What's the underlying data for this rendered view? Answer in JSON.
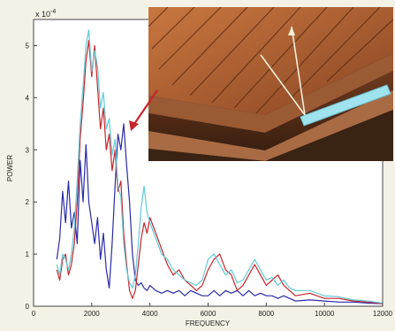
{
  "chart_data": {
    "type": "line",
    "title": "",
    "xlabel": "FREQUENCY",
    "ylabel": "POWER",
    "y_multiplier_label": "x 10",
    "y_multiplier_exponent": "-4",
    "xlim": [
      0,
      12000
    ],
    "ylim": [
      0,
      5.5
    ],
    "x_ticks": [
      0,
      2000,
      4000,
      6000,
      8000,
      10000,
      12000
    ],
    "y_ticks": [
      0,
      1,
      2,
      3,
      4,
      5
    ],
    "grid": false,
    "series": [
      {
        "color": "#2a2aa8",
        "x": [
          800,
          900,
          1000,
          1100,
          1200,
          1300,
          1400,
          1500,
          1600,
          1700,
          1800,
          1900,
          2000,
          2100,
          2200,
          2300,
          2400,
          2500,
          2600,
          2700,
          2800,
          2900,
          3000,
          3100,
          3200,
          3300,
          3400,
          3500,
          3600,
          3700,
          3800,
          3900,
          4000,
          4200,
          4400,
          4600,
          4800,
          5000,
          5200,
          5400,
          5600,
          5800,
          6000,
          6200,
          6400,
          6600,
          6800,
          7000,
          7200,
          7400,
          7600,
          7800,
          8000,
          8200,
          8400,
          8600,
          8800,
          9000,
          9500,
          10000,
          10500,
          11000,
          11500,
          12000
        ],
        "y": [
          0.9,
          1.3,
          2.2,
          1.6,
          2.4,
          1.5,
          1.8,
          1.2,
          2.8,
          2.0,
          3.1,
          2.0,
          1.6,
          1.2,
          1.7,
          0.9,
          1.4,
          0.7,
          0.35,
          1.2,
          2.3,
          3.3,
          3.0,
          3.5,
          2.7,
          2.0,
          1.0,
          0.5,
          0.4,
          0.45,
          0.35,
          0.3,
          0.4,
          0.3,
          0.25,
          0.3,
          0.25,
          0.3,
          0.2,
          0.3,
          0.25,
          0.2,
          0.2,
          0.3,
          0.2,
          0.3,
          0.25,
          0.3,
          0.2,
          0.3,
          0.2,
          0.25,
          0.2,
          0.2,
          0.15,
          0.2,
          0.15,
          0.1,
          0.12,
          0.1,
          0.08,
          0.08,
          0.06,
          0.05
        ]
      },
      {
        "color": "#c8242a",
        "x": [
          800,
          900,
          1000,
          1100,
          1200,
          1300,
          1400,
          1500,
          1600,
          1700,
          1800,
          1900,
          2000,
          2100,
          2200,
          2300,
          2400,
          2500,
          2600,
          2700,
          2800,
          2900,
          3000,
          3100,
          3200,
          3300,
          3400,
          3500,
          3600,
          3700,
          3800,
          3900,
          4000,
          4200,
          4400,
          4600,
          4800,
          5000,
          5200,
          5400,
          5600,
          5800,
          6000,
          6200,
          6400,
          6600,
          6800,
          7000,
          7200,
          7400,
          7600,
          7800,
          8000,
          8200,
          8400,
          8600,
          8800,
          9000,
          9500,
          10000,
          10500,
          11000,
          11500,
          12000
        ],
        "y": [
          0.7,
          0.5,
          0.9,
          1.0,
          0.6,
          0.8,
          1.2,
          2.0,
          3.2,
          3.9,
          4.7,
          5.1,
          4.4,
          5.0,
          4.2,
          3.4,
          3.8,
          3.0,
          3.3,
          2.6,
          3.0,
          2.2,
          2.4,
          1.4,
          0.8,
          0.3,
          0.15,
          0.3,
          0.8,
          1.3,
          1.6,
          1.4,
          1.7,
          1.4,
          1.1,
          0.8,
          0.6,
          0.7,
          0.5,
          0.4,
          0.3,
          0.4,
          0.7,
          0.9,
          1.0,
          0.7,
          0.6,
          0.3,
          0.4,
          0.6,
          0.8,
          0.6,
          0.4,
          0.5,
          0.6,
          0.4,
          0.3,
          0.2,
          0.25,
          0.15,
          0.15,
          0.1,
          0.08,
          0.05
        ]
      },
      {
        "color": "#62c9d6",
        "x": [
          800,
          900,
          1000,
          1100,
          1200,
          1300,
          1400,
          1500,
          1600,
          1700,
          1800,
          1900,
          2000,
          2100,
          2200,
          2300,
          2400,
          2500,
          2600,
          2700,
          2800,
          2900,
          3000,
          3100,
          3200,
          3300,
          3400,
          3500,
          3600,
          3700,
          3800,
          3900,
          4000,
          4200,
          4400,
          4600,
          4800,
          5000,
          5200,
          5400,
          5600,
          5800,
          6000,
          6200,
          6400,
          6600,
          6800,
          7000,
          7200,
          7400,
          7600,
          7800,
          8000,
          8200,
          8400,
          8600,
          8800,
          9000,
          9500,
          10000,
          10500,
          11000,
          11500,
          12000
        ],
        "y": [
          0.8,
          0.6,
          1.0,
          0.9,
          0.7,
          1.0,
          1.5,
          2.4,
          3.5,
          4.2,
          5.0,
          5.3,
          4.5,
          4.9,
          4.6,
          3.8,
          4.1,
          3.4,
          3.6,
          2.9,
          3.2,
          2.3,
          2.1,
          1.2,
          0.7,
          0.45,
          0.35,
          0.6,
          1.2,
          1.9,
          2.3,
          1.8,
          1.6,
          1.3,
          1.0,
          0.9,
          0.7,
          0.6,
          0.5,
          0.45,
          0.4,
          0.5,
          0.9,
          1.0,
          0.8,
          0.6,
          0.7,
          0.45,
          0.5,
          0.7,
          0.9,
          0.7,
          0.5,
          0.55,
          0.4,
          0.5,
          0.35,
          0.3,
          0.3,
          0.2,
          0.18,
          0.12,
          0.1,
          0.06
        ]
      }
    ]
  },
  "inset_photo": {
    "description_icon": "wood-layers-photo-icon"
  }
}
